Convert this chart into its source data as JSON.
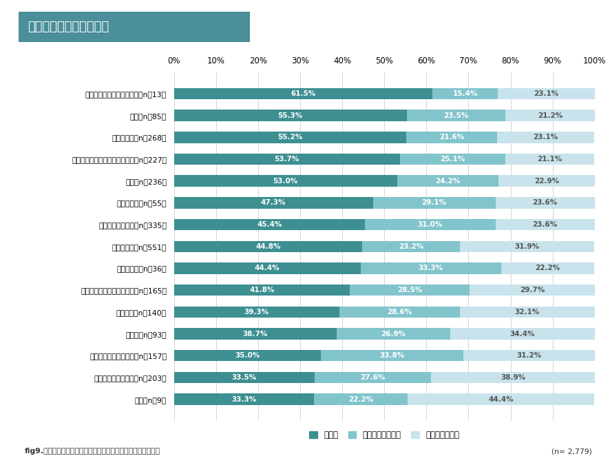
{
  "title": "今後望む座席の運用方法",
  "categories": [
    "デザイナー・クリエイター（n＝13）",
    "研究（n＝85）",
    "設計・開発（n＝268）",
    "現場管理・生産管理・職場管理（n＝227）",
    "事務（n＝236）",
    "調達・購買（n＝55）",
    "人事・経理・総務（n＝335）",
    "営業・販売（n＝551）",
    "法務・知財（n＝36）",
    "システム開発・保守・運用（n＝165）",
    "サービス（n＝140）",
    "経営層（n＝93）",
    "企画・マーケティング（n＝157）",
    "システムエンジニア（n＝203）",
    "広報（n＝9）"
  ],
  "fixed": [
    61.5,
    55.3,
    55.2,
    53.7,
    53.0,
    47.3,
    45.4,
    44.8,
    44.4,
    41.8,
    39.3,
    38.7,
    35.0,
    33.5,
    33.3
  ],
  "group": [
    15.4,
    23.5,
    21.6,
    25.1,
    24.2,
    29.1,
    31.0,
    23.2,
    33.3,
    28.5,
    28.6,
    26.9,
    33.8,
    27.6,
    22.2
  ],
  "free": [
    23.1,
    21.2,
    23.1,
    21.1,
    22.9,
    23.6,
    23.6,
    31.9,
    22.2,
    29.7,
    32.1,
    34.4,
    31.2,
    38.9,
    44.4
  ],
  "color_fixed": "#3d8f91",
  "color_group": "#82c4cc",
  "color_free": "#c8e3eb",
  "color_title_bg": "#4a8f9a",
  "legend_labels": [
    "固定席",
    "グループアドレス",
    "フリーアドレス"
  ],
  "footer_left": "fig9.コロナ禍後に適切だと思うオフィスの座席運用（職種別）",
  "footer_right": "(n= 2,779)",
  "xlabel_ticks": [
    0,
    10,
    20,
    30,
    40,
    50,
    60,
    70,
    80,
    90,
    100
  ]
}
